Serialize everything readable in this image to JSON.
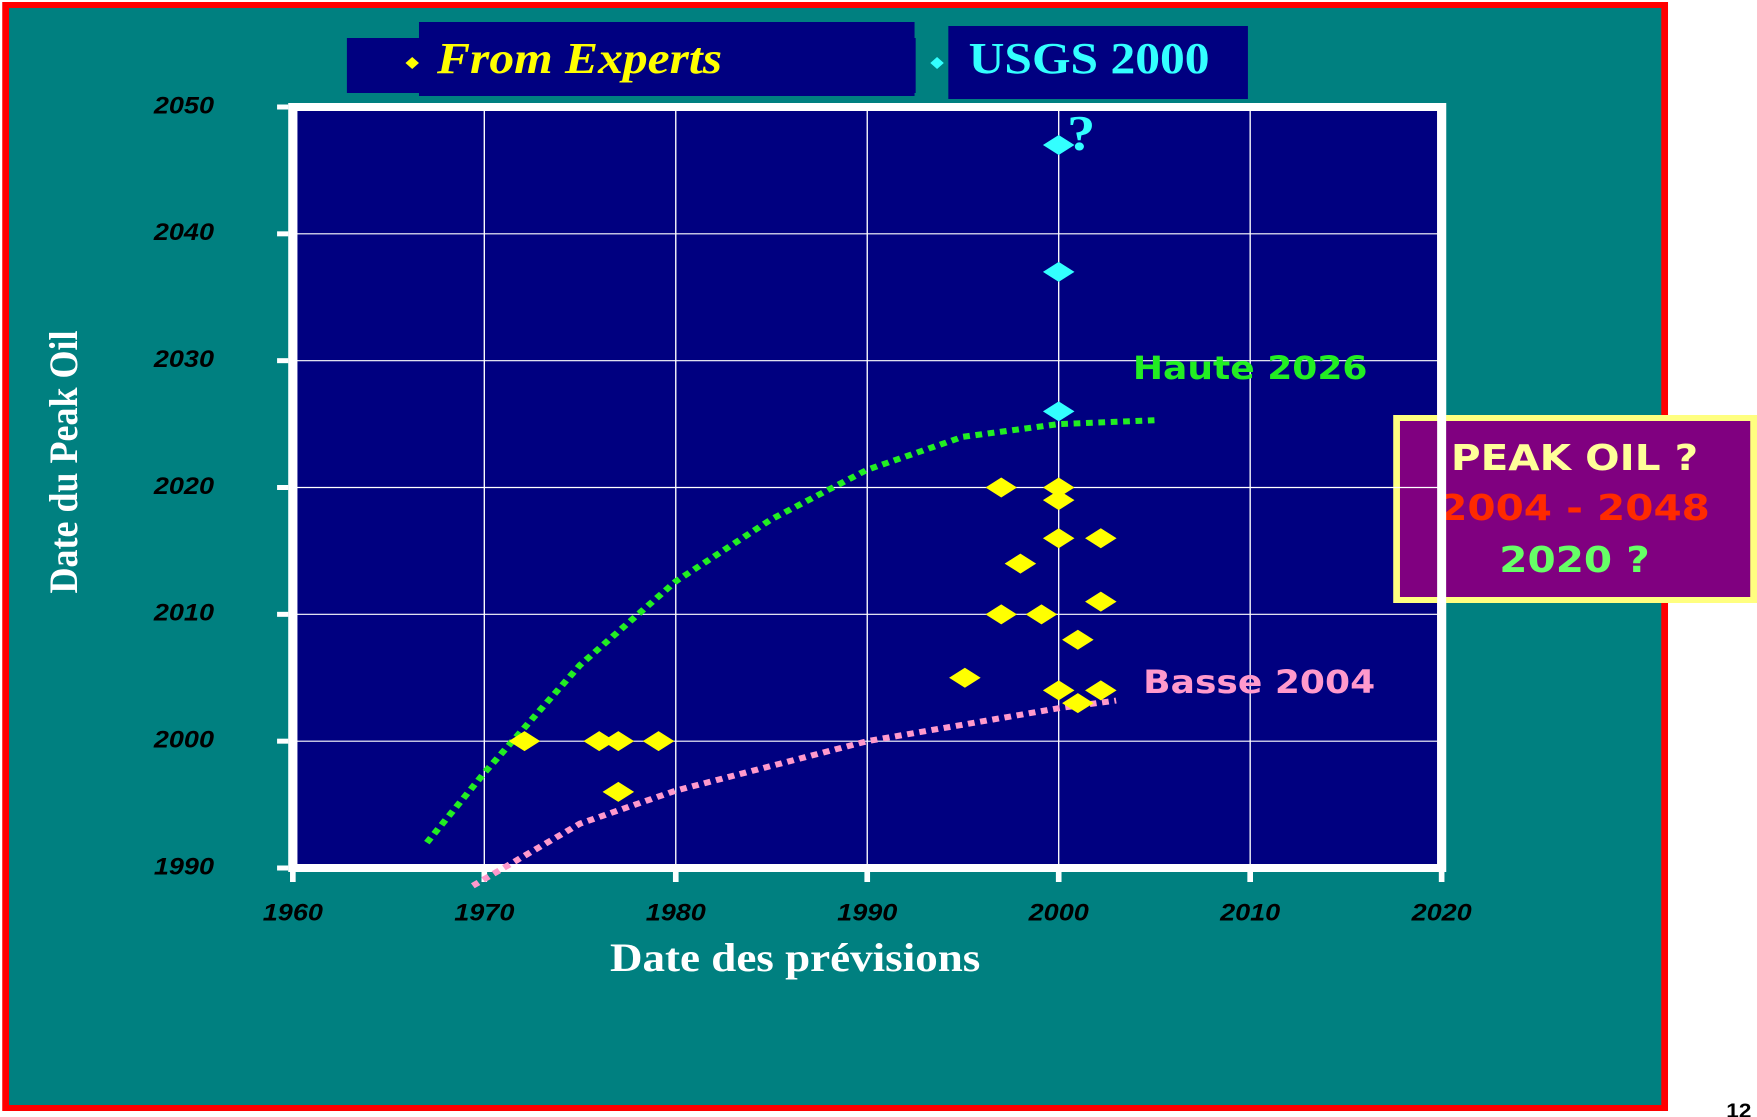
{
  "chart_data": {
    "type": "scatter",
    "xlabel": "Date des prévisions",
    "ylabel": "Date du Peak Oil",
    "xlim": [
      1960,
      2020
    ],
    "xticks": [
      1960,
      1970,
      1980,
      1990,
      2000,
      2010,
      2020
    ],
    "ylim": [
      1990,
      2050
    ],
    "yticks": [
      1990,
      2000,
      2010,
      2020,
      2030,
      2040,
      2050
    ],
    "grid": true,
    "series": [
      {
        "name": "From Experts",
        "color": "#ffff00",
        "x": [
          1972.1,
          1976,
          1977,
          1979.1,
          1977,
          1995.1,
          1997,
          1997,
          1998,
          1999.1,
          2000,
          2000,
          2000,
          2000,
          2001,
          2001,
          2002.2,
          2002.2,
          2002.2
        ],
        "values": [
          2000,
          2000,
          2000,
          2000,
          1996,
          2005,
          2020,
          2010,
          2014,
          2010,
          2020,
          2019,
          2016,
          2004,
          2008,
          2003,
          2016,
          2011,
          2004
        ]
      },
      {
        "name": "USGS 2000",
        "color": "#33ffff",
        "x": [
          2000,
          2000,
          2000
        ],
        "values": [
          2047,
          2037,
          2026
        ]
      }
    ],
    "trend_lines": [
      {
        "name": "Haute 2026",
        "color": "#22ee22",
        "x": [
          1967,
          1970,
          1975,
          1980,
          1985,
          1990,
          1995,
          2000,
          2005
        ],
        "values": [
          1992,
          1997.5,
          2006,
          2012.6,
          2017.5,
          2021.4,
          2024,
          2025,
          2025.3
        ]
      },
      {
        "name": "Basse 2004",
        "color": "#ff99cc",
        "x": [
          1969.4,
          1975,
          1980,
          1990,
          2000,
          2003
        ],
        "values": [
          1988.6,
          1993.5,
          1996.1,
          2000,
          2002.6,
          2003.2
        ]
      }
    ],
    "annotation": "?",
    "callout": [
      "PEAK OIL ?",
      "2004 - 2048",
      "2020 ?"
    ],
    "page_number": "12"
  }
}
